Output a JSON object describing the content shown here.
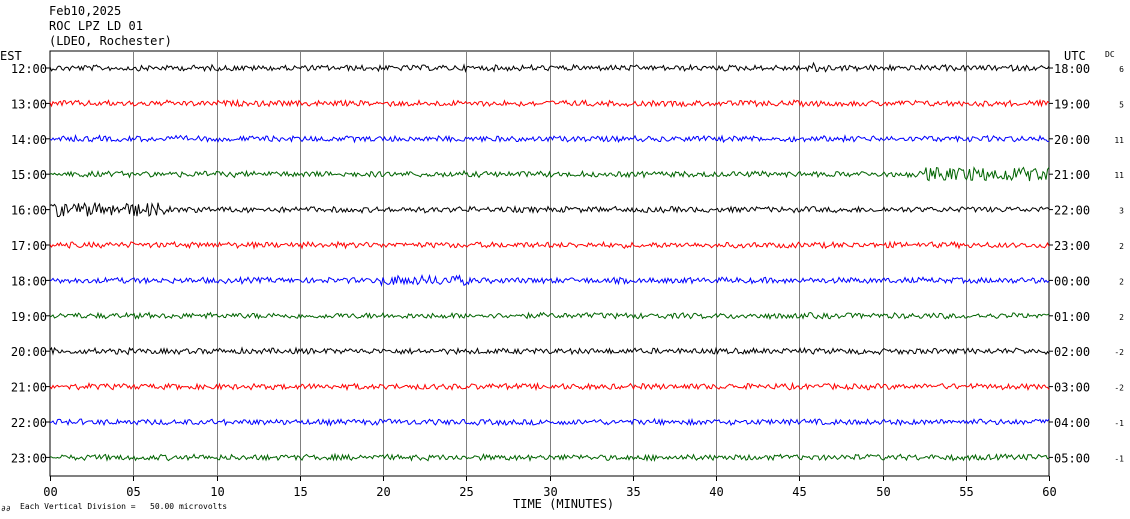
{
  "header": {
    "date": "Feb10,2025",
    "station": "ROC LPZ LD 01",
    "network": "(LDEO, Rochester)"
  },
  "labels": {
    "left_zone": "EST",
    "right_zone": "UTC",
    "dc": "DC",
    "xlabel": "TIME (MINUTES)",
    "scale_note": "Each Vertical Division =   50.00 microvolts",
    "scale_mark": "∂∂"
  },
  "chart_data": {
    "type": "line",
    "title": "",
    "xlabel": "TIME (MINUTES)",
    "ylabel": "",
    "xlim": [
      0,
      60
    ],
    "x_tick_labels": [
      "00",
      "05",
      "10",
      "15",
      "20",
      "25",
      "30",
      "35",
      "40",
      "45",
      "50",
      "55",
      "60"
    ],
    "grid": true,
    "rows": [
      {
        "est": "12:00",
        "utc": "18:00",
        "dc": "6",
        "color": "#000000"
      },
      {
        "est": "13:00",
        "utc": "19:00",
        "dc": "5",
        "color": "#ff0000"
      },
      {
        "est": "14:00",
        "utc": "20:00",
        "dc": "11",
        "color": "#0000ff"
      },
      {
        "est": "15:00",
        "utc": "21:00",
        "dc": "11",
        "color": "#006400"
      },
      {
        "est": "16:00",
        "utc": "22:00",
        "dc": "3",
        "color": "#000000"
      },
      {
        "est": "17:00",
        "utc": "23:00",
        "dc": "2",
        "color": "#ff0000"
      },
      {
        "est": "18:00",
        "utc": "00:00",
        "dc": "2",
        "color": "#0000ff"
      },
      {
        "est": "19:00",
        "utc": "01:00",
        "dc": "2",
        "color": "#006400"
      },
      {
        "est": "20:00",
        "utc": "02:00",
        "dc": "-2",
        "color": "#000000"
      },
      {
        "est": "21:00",
        "utc": "03:00",
        "dc": "-2",
        "color": "#ff0000"
      },
      {
        "est": "22:00",
        "utc": "04:00",
        "dc": "-1",
        "color": "#0000ff"
      },
      {
        "est": "23:00",
        "utc": "05:00",
        "dc": "-1",
        "color": "#006400"
      }
    ]
  }
}
